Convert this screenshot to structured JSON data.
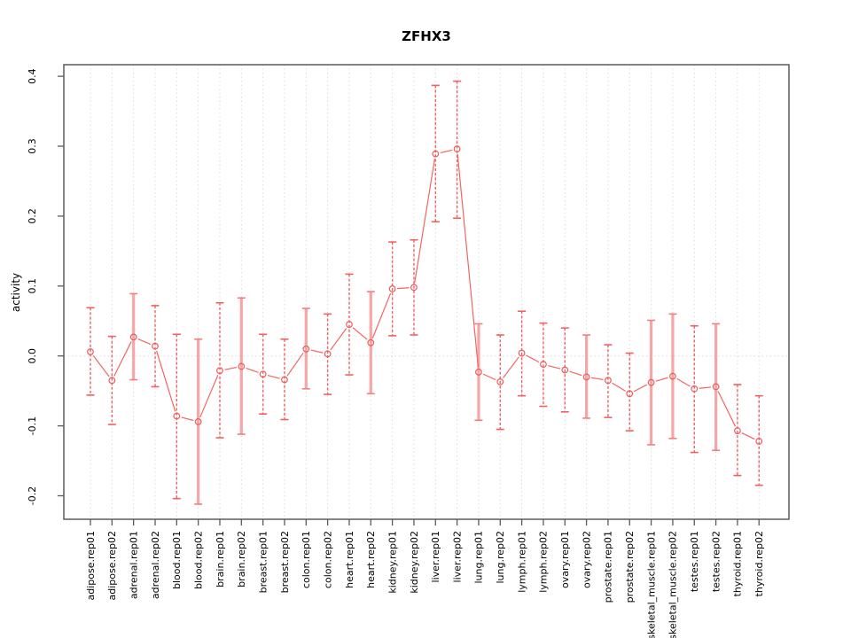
{
  "chart_data": {
    "type": "line",
    "title": "ZFHX3",
    "xlabel": "",
    "ylabel": "activity",
    "ylim": [
      -0.234,
      0.417
    ],
    "yticks": [
      0.4,
      0.3,
      0.2,
      0.1,
      0.0,
      -0.1,
      -0.2
    ],
    "ytick_labels": [
      "0.4",
      "0.3",
      "0.2",
      "0.1",
      "0.0",
      "-0.1",
      "-0.2"
    ],
    "legend": "none",
    "grid": {
      "vertical": "dotted line at every category",
      "horizontal": "dotted line at y=0 only"
    },
    "marker": "open-circle",
    "categories": [
      "adipose.rep01",
      "adipose.rep02",
      "adrenal.rep01",
      "adrenal.rep02",
      "blood.rep01",
      "blood.rep02",
      "brain.rep01",
      "brain.rep02",
      "breast.rep01",
      "breast.rep02",
      "colon.rep01",
      "colon.rep02",
      "heart.rep01",
      "heart.rep02",
      "kidney.rep01",
      "kidney.rep02",
      "liver.rep01",
      "liver.rep02",
      "lung.rep01",
      "lung.rep02",
      "lymph.rep01",
      "lymph.rep02",
      "ovary.rep01",
      "ovary.rep02",
      "prostate.rep01",
      "prostate.rep02",
      "skeletal_muscle.rep01",
      "skeletal_muscle.rep02",
      "testes.rep01",
      "testes.rep02",
      "thyroid.rep01",
      "thyroid.rep02"
    ],
    "series": [
      {
        "name": "activity",
        "values": [
          0.006,
          -0.035,
          0.027,
          0.014,
          -0.086,
          -0.094,
          -0.021,
          -0.015,
          -0.026,
          -0.034,
          0.01,
          0.003,
          0.045,
          0.019,
          0.096,
          0.098,
          0.289,
          0.296,
          -0.023,
          -0.037,
          0.004,
          -0.012,
          -0.02,
          -0.03,
          -0.035,
          -0.054,
          -0.038,
          -0.029,
          -0.047,
          -0.044,
          -0.107,
          -0.122
        ],
        "upper": [
          0.069,
          0.028,
          0.089,
          0.072,
          0.031,
          0.024,
          0.076,
          0.083,
          0.031,
          0.024,
          0.068,
          0.06,
          0.117,
          0.092,
          0.163,
          0.166,
          0.387,
          0.393,
          0.046,
          0.03,
          0.064,
          0.047,
          0.04,
          0.03,
          0.016,
          0.004,
          0.051,
          0.06,
          0.043,
          0.046,
          -0.041,
          -0.057
        ],
        "lower": [
          -0.056,
          -0.098,
          -0.034,
          -0.044,
          -0.204,
          -0.212,
          -0.117,
          -0.112,
          -0.083,
          -0.091,
          -0.047,
          -0.055,
          -0.027,
          -0.054,
          0.029,
          0.03,
          0.192,
          0.197,
          -0.092,
          -0.105,
          -0.057,
          -0.072,
          -0.08,
          -0.089,
          -0.088,
          -0.107,
          -0.127,
          -0.118,
          -0.138,
          -0.135,
          -0.171,
          -0.185
        ],
        "error_bar_styles": [
          "dashed",
          "dashed",
          "solid",
          "dashed",
          "dashed",
          "solid",
          "dashed",
          "solid",
          "dashed",
          "dashed",
          "solid",
          "dashed",
          "dashed",
          "solid",
          "dashed",
          "dashed",
          "dashed",
          "dashed",
          "solid",
          "dashed",
          "dashed",
          "dashed",
          "dashed",
          "solid",
          "dashed",
          "dashed",
          "solid",
          "solid",
          "dashed",
          "solid",
          "dashed",
          "dashed"
        ]
      }
    ],
    "colors": {
      "series_line": "#F4655F",
      "marker_stroke": "#EE5A5A",
      "errorbar_dashed": "#F26060",
      "errorbar_solid": "#F7A6A6",
      "grid": "#DCDCDC",
      "axis": "#5A5A5A",
      "text": "#000000"
    }
  }
}
